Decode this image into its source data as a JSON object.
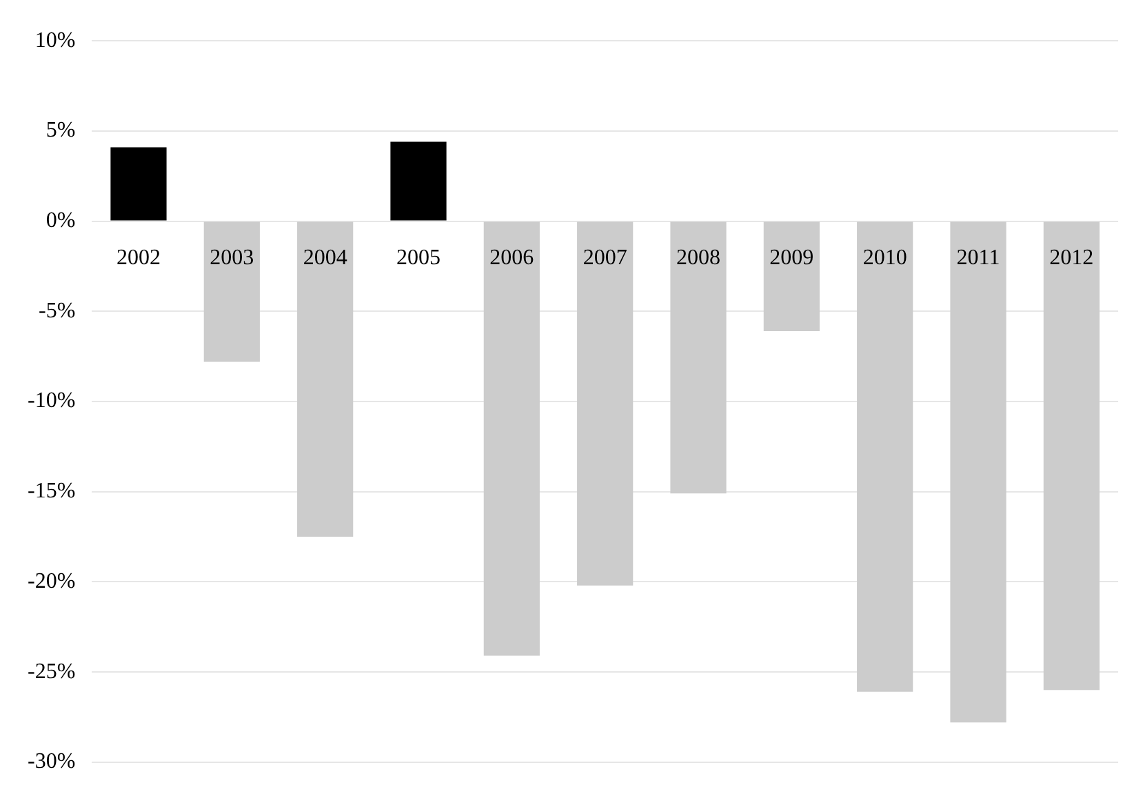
{
  "chart_data": {
    "type": "bar",
    "categories": [
      "2002",
      "2003",
      "2004",
      "2005",
      "2006",
      "2007",
      "2008",
      "2009",
      "2010",
      "2011",
      "2012"
    ],
    "values": [
      4.1,
      -7.8,
      -17.5,
      4.4,
      -24.1,
      -20.2,
      -15.1,
      -6.1,
      -26.1,
      -27.8,
      -26.0
    ],
    "colors": [
      "#000000",
      "#cccccc",
      "#cccccc",
      "#000000",
      "#cccccc",
      "#cccccc",
      "#cccccc",
      "#cccccc",
      "#cccccc",
      "#cccccc",
      "#cccccc"
    ],
    "ylim": [
      -30,
      10
    ],
    "yticks": [
      {
        "value": -30,
        "label": "-30%"
      },
      {
        "value": -25,
        "label": "-25%"
      },
      {
        "value": -20,
        "label": "-20%"
      },
      {
        "value": -15,
        "label": "-15%"
      },
      {
        "value": -10,
        "label": "-10%"
      },
      {
        "value": -5,
        "label": "-5%"
      },
      {
        "value": 0,
        "label": "0%"
      },
      {
        "value": 5,
        "label": "5%"
      },
      {
        "value": 10,
        "label": "10%"
      }
    ],
    "grid": "y",
    "legend": false
  }
}
